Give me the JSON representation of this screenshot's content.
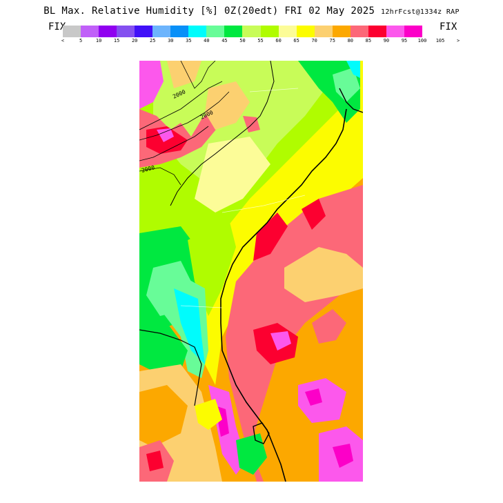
{
  "header": {
    "title_main": "BL Max. Relative Humidity [%] 0Z(20edt) FRI 02 May 2025",
    "title_run": "12hrFcst@1334z RAP",
    "fix_left": "FIX",
    "fix_right": "FIX"
  },
  "legend": {
    "colors": [
      "#c8c8c8",
      "#c060f8",
      "#9000f0",
      "#8450f0",
      "#4010f8",
      "#6cb4fc",
      "#0890f8",
      "#00fcfc",
      "#68fc98",
      "#00e840",
      "#c8fc58",
      "#b0fc00",
      "#fcfc98",
      "#fcfc00",
      "#fcd070",
      "#fca800",
      "#fc6878",
      "#fc0030",
      "#fc58ec",
      "#fc00c8"
    ],
    "ticks": [
      "<",
      "5",
      "10",
      "15",
      "20",
      "25",
      "30",
      "35",
      "40",
      "45",
      "50",
      "55",
      "60",
      "65",
      "70",
      "75",
      "80",
      "85",
      "90",
      "95",
      "100",
      "105",
      ">"
    ]
  },
  "map": {
    "contour_labels": [
      "2000",
      "2000",
      "2000"
    ]
  }
}
